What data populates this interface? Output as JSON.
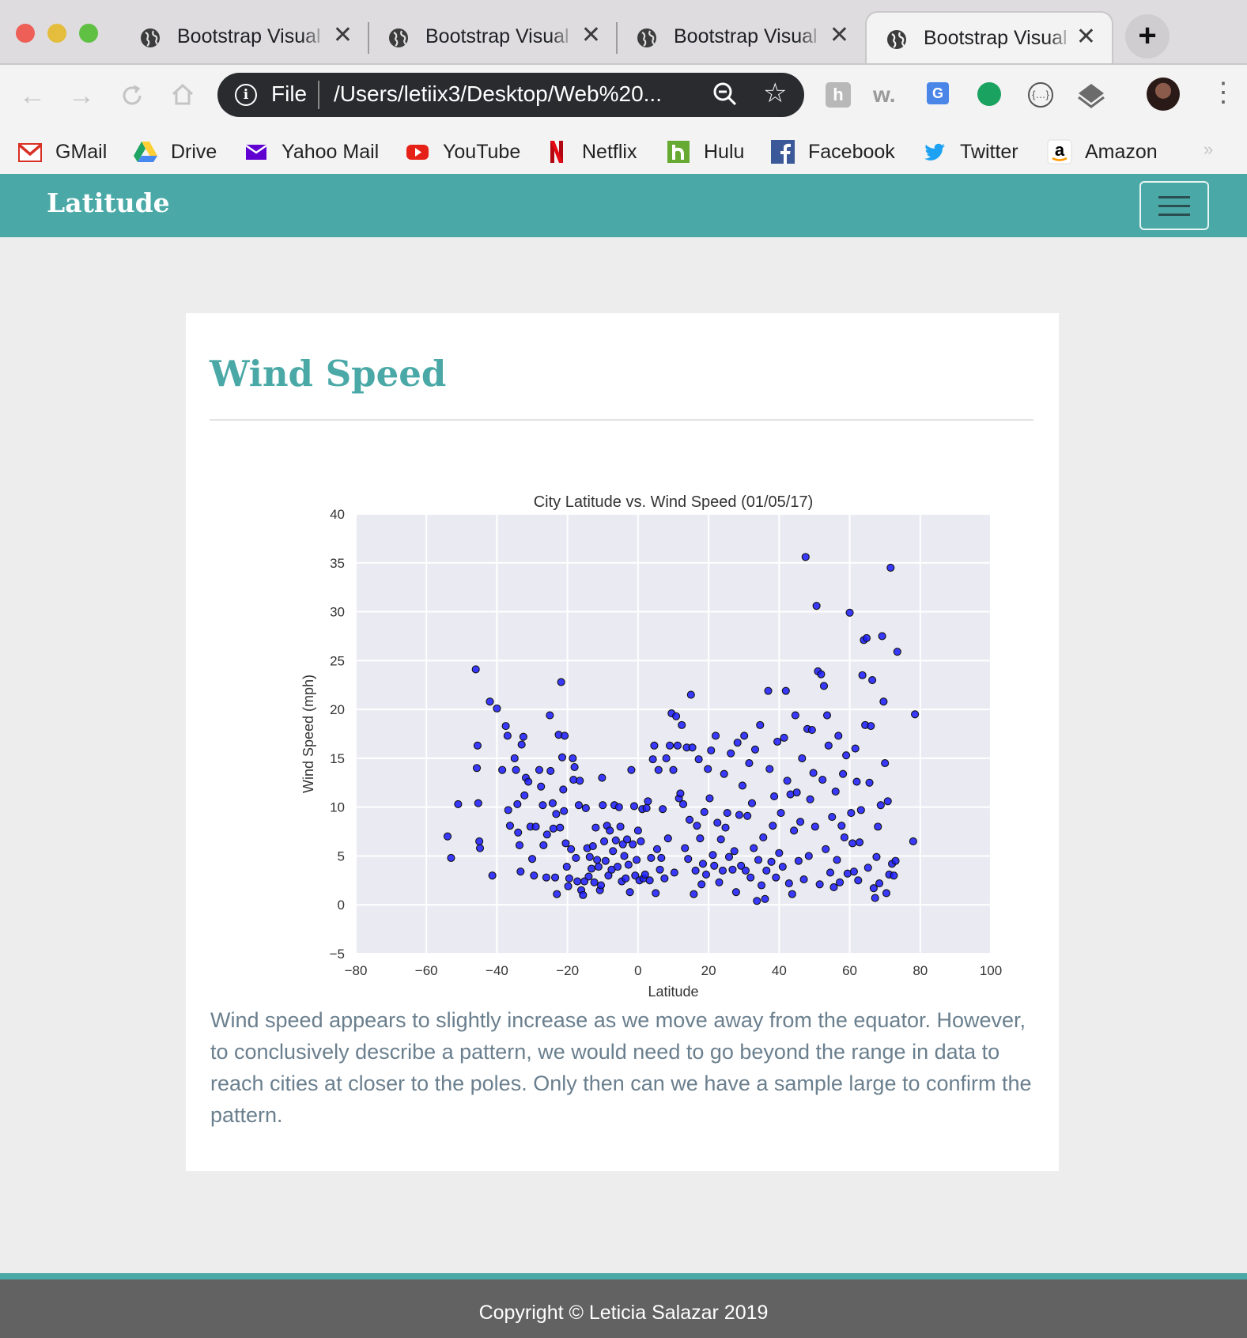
{
  "browser": {
    "tabs": [
      {
        "title": "Bootstrap Visual",
        "active": false
      },
      {
        "title": "Bootstrap Visual",
        "active": false
      },
      {
        "title": "Bootstrap Visual",
        "active": false
      },
      {
        "title": "Bootstrap Visual",
        "active": true
      }
    ],
    "new_tab_icon": "plus-icon",
    "omnibox": {
      "scheme_label": "File",
      "url": "/Users/letiix3/Desktop/Web%20..."
    },
    "bookmarks": [
      {
        "label": "GMail",
        "icon": "gmail-icon",
        "color": "#d93025"
      },
      {
        "label": "Drive",
        "icon": "drive-icon",
        "color": "#1fa463"
      },
      {
        "label": "Yahoo Mail",
        "icon": "yahoo-mail-icon",
        "color": "#6001d2"
      },
      {
        "label": "YouTube",
        "icon": "youtube-icon",
        "color": "#e62117"
      },
      {
        "label": "Netflix",
        "icon": "netflix-icon",
        "color": "#e50914"
      },
      {
        "label": "Hulu",
        "icon": "hulu-icon",
        "color": "#66aa33"
      },
      {
        "label": "Facebook",
        "icon": "facebook-icon",
        "color": "#3b5998"
      },
      {
        "label": "Twitter",
        "icon": "twitter-icon",
        "color": "#1da1f2"
      },
      {
        "label": "Amazon",
        "icon": "amazon-icon",
        "color": "#000000"
      }
    ]
  },
  "navbar": {
    "brand": "Latitude",
    "accent": "#4aa9a7"
  },
  "page": {
    "heading": "Wind Speed",
    "description": "Wind speed appears to slightly increase as we move away from the equator. However, to conclusively describe a pattern, we would need to go beyond the range in data to reach cities at closer to the poles. Only then can we have a sample large to confirm the pattern."
  },
  "footer": {
    "copyright": "Copyright © Leticia Salazar 2019"
  },
  "chart_data": {
    "type": "scatter",
    "title": "City Latitude vs. Wind Speed (01/05/17)",
    "xlabel": "Latitude",
    "ylabel": "Wind Speed (mph)",
    "xlim": [
      -80,
      100
    ],
    "ylim": [
      -5,
      40
    ],
    "xticks": [
      -80,
      -60,
      -40,
      -20,
      0,
      20,
      40,
      60,
      80,
      100
    ],
    "yticks": [
      -5,
      0,
      5,
      10,
      15,
      20,
      25,
      30,
      35,
      40
    ],
    "grid": true,
    "marker_color": "#1a1aff",
    "points": [
      [
        -54,
        7
      ],
      [
        -53,
        4.8
      ],
      [
        -51,
        10.3
      ],
      [
        -46,
        24.1
      ],
      [
        -45.5,
        16.3
      ],
      [
        -45.7,
        14
      ],
      [
        -45.3,
        10.4
      ],
      [
        -45,
        6.5
      ],
      [
        -44.8,
        5.8
      ],
      [
        -42,
        20.8
      ],
      [
        -41.3,
        3
      ],
      [
        -40,
        20.1
      ],
      [
        -38.5,
        13.8
      ],
      [
        -37.5,
        18.3
      ],
      [
        -37,
        17.3
      ],
      [
        -36.8,
        9.7
      ],
      [
        -36.3,
        8.1
      ],
      [
        -35,
        15
      ],
      [
        -34.6,
        13.8
      ],
      [
        -34.2,
        10.3
      ],
      [
        -34,
        7.4
      ],
      [
        -33.6,
        6.1
      ],
      [
        -33.3,
        3.4
      ],
      [
        -33,
        16.4
      ],
      [
        -32.5,
        17.2
      ],
      [
        -32.2,
        11.2
      ],
      [
        -31.8,
        13
      ],
      [
        -31.1,
        12.6
      ],
      [
        -30.5,
        8
      ],
      [
        -30,
        4.7
      ],
      [
        -29.5,
        3
      ],
      [
        -29,
        8
      ],
      [
        -28,
        13.8
      ],
      [
        -27.5,
        12.1
      ],
      [
        -27,
        10.2
      ],
      [
        -26.8,
        6.1
      ],
      [
        -26,
        2.8
      ],
      [
        -25.8,
        7.2
      ],
      [
        -25,
        19.4
      ],
      [
        -24.8,
        13.7
      ],
      [
        -24.2,
        10.4
      ],
      [
        -24,
        7.8
      ],
      [
        -23.5,
        2.8
      ],
      [
        -23.2,
        9.3
      ],
      [
        -23,
        1.1
      ],
      [
        -22.5,
        17.4
      ],
      [
        -22.1,
        7.9
      ],
      [
        -21.8,
        22.8
      ],
      [
        -21.5,
        15.1
      ],
      [
        -21.2,
        11.8
      ],
      [
        -21,
        9.6
      ],
      [
        -20.8,
        17.3
      ],
      [
        -20.5,
        6.3
      ],
      [
        -20.2,
        3.9
      ],
      [
        -19.8,
        1.9
      ],
      [
        -19.5,
        2.7
      ],
      [
        -19,
        5.7
      ],
      [
        -18.5,
        15
      ],
      [
        -18.3,
        12.8
      ],
      [
        -18,
        14.1
      ],
      [
        -17.6,
        4.8
      ],
      [
        -17.2,
        2.4
      ],
      [
        -16.8,
        10.2
      ],
      [
        -16.5,
        12.7
      ],
      [
        -16.1,
        1.5
      ],
      [
        -15.6,
        1
      ],
      [
        -15.2,
        2.4
      ],
      [
        -14.8,
        9.9
      ],
      [
        -14.4,
        5.8
      ],
      [
        -14,
        2.9
      ],
      [
        -13.7,
        4.9
      ],
      [
        -13.2,
        3.7
      ],
      [
        -12.8,
        6
      ],
      [
        -12.4,
        2.3
      ],
      [
        -12,
        7.9
      ],
      [
        -11.6,
        4.6
      ],
      [
        -11.2,
        3.9
      ],
      [
        -10.8,
        1.5
      ],
      [
        -10.5,
        2
      ],
      [
        -10.2,
        13
      ],
      [
        -10,
        10.2
      ],
      [
        -9.6,
        6.5
      ],
      [
        -9.2,
        4.5
      ],
      [
        -8.8,
        8.1
      ],
      [
        -8.4,
        3
      ],
      [
        -8,
        7.6
      ],
      [
        -7.5,
        3.6
      ],
      [
        -7.1,
        5.5
      ],
      [
        -6.7,
        10.2
      ],
      [
        -6.3,
        6.6
      ],
      [
        -5.8,
        3.9
      ],
      [
        -5.4,
        10
      ],
      [
        -5,
        8
      ],
      [
        -4.6,
        2.4
      ],
      [
        -4.3,
        6.2
      ],
      [
        -3.9,
        5
      ],
      [
        -3.5,
        2.7
      ],
      [
        -3.1,
        6.7
      ],
      [
        -2.7,
        4.1
      ],
      [
        -2.3,
        1.3
      ],
      [
        -1.9,
        13.8
      ],
      [
        -1.5,
        6.2
      ],
      [
        -1.1,
        10.1
      ],
      [
        -0.8,
        3
      ],
      [
        -0.4,
        4.6
      ],
      [
        0,
        7.6
      ],
      [
        0.4,
        2.5
      ],
      [
        0.8,
        6.5
      ],
      [
        1.2,
        9.8
      ],
      [
        1.5,
        2.7
      ],
      [
        2,
        3.1
      ],
      [
        2.4,
        9.9
      ],
      [
        2.8,
        10.6
      ],
      [
        3.3,
        2.5
      ],
      [
        3.7,
        4.8
      ],
      [
        4.2,
        14.9
      ],
      [
        4.6,
        16.3
      ],
      [
        5,
        1.2
      ],
      [
        5.4,
        5.7
      ],
      [
        5.8,
        13.8
      ],
      [
        6.2,
        3.6
      ],
      [
        6.6,
        4.8
      ],
      [
        7,
        9.8
      ],
      [
        7.5,
        2.7
      ],
      [
        8,
        15
      ],
      [
        8.5,
        6.8
      ],
      [
        9,
        16.3
      ],
      [
        9.5,
        19.6
      ],
      [
        10,
        13.8
      ],
      [
        10.3,
        3.3
      ],
      [
        10.8,
        19.3
      ],
      [
        11.2,
        16.3
      ],
      [
        11.6,
        10.9
      ],
      [
        12,
        11.4
      ],
      [
        12.4,
        18.4
      ],
      [
        12.8,
        10.3
      ],
      [
        13.3,
        5.8
      ],
      [
        13.8,
        16.1
      ],
      [
        14.2,
        4.7
      ],
      [
        14.6,
        8.7
      ],
      [
        15,
        21.5
      ],
      [
        15.4,
        16.1
      ],
      [
        15.8,
        1.1
      ],
      [
        16.3,
        3.5
      ],
      [
        16.7,
        8.1
      ],
      [
        17.2,
        14.9
      ],
      [
        17.6,
        6.8
      ],
      [
        18,
        2.1
      ],
      [
        18.4,
        4.2
      ],
      [
        18.8,
        9.5
      ],
      [
        19.3,
        3.1
      ],
      [
        19.8,
        13.9
      ],
      [
        20.3,
        10.9
      ],
      [
        20.7,
        15.8
      ],
      [
        21.2,
        5.1
      ],
      [
        21.6,
        4
      ],
      [
        22,
        17.3
      ],
      [
        22.5,
        8.4
      ],
      [
        23,
        2.3
      ],
      [
        23.5,
        6.7
      ],
      [
        24,
        3.5
      ],
      [
        24.4,
        13.4
      ],
      [
        24.8,
        7.9
      ],
      [
        25.3,
        9.4
      ],
      [
        25.8,
        4.9
      ],
      [
        26.3,
        15.5
      ],
      [
        26.8,
        3.6
      ],
      [
        27.3,
        5.5
      ],
      [
        27.8,
        1.3
      ],
      [
        28.2,
        16.6
      ],
      [
        28.7,
        9.2
      ],
      [
        29.2,
        4
      ],
      [
        29.6,
        12.2
      ],
      [
        30.1,
        17.3
      ],
      [
        30.5,
        3.5
      ],
      [
        31,
        9.1
      ],
      [
        31.5,
        14.5
      ],
      [
        31.9,
        2.8
      ],
      [
        32.3,
        10.4
      ],
      [
        32.8,
        5.8
      ],
      [
        33.2,
        15.9
      ],
      [
        33.7,
        0.4
      ],
      [
        34.1,
        4.6
      ],
      [
        34.6,
        18.4
      ],
      [
        35,
        2
      ],
      [
        35.5,
        6.9
      ],
      [
        36,
        0.6
      ],
      [
        36.4,
        3.5
      ],
      [
        36.9,
        21.9
      ],
      [
        37.3,
        13.9
      ],
      [
        37.8,
        4.4
      ],
      [
        38.2,
        8.1
      ],
      [
        38.6,
        11.1
      ],
      [
        39.1,
        2.8
      ],
      [
        39.5,
        16.7
      ],
      [
        40,
        5.3
      ],
      [
        40.5,
        9.4
      ],
      [
        41,
        3.9
      ],
      [
        41.4,
        17.1
      ],
      [
        41.9,
        21.9
      ],
      [
        42.3,
        12.7
      ],
      [
        42.8,
        2.2
      ],
      [
        43.2,
        11.3
      ],
      [
        43.7,
        1.1
      ],
      [
        44.2,
        7.6
      ],
      [
        44.6,
        19.4
      ],
      [
        45,
        11.5
      ],
      [
        45.5,
        4.5
      ],
      [
        46,
        8.5
      ],
      [
        46.5,
        15
      ],
      [
        47,
        2.6
      ],
      [
        47.5,
        35.6
      ],
      [
        48,
        18
      ],
      [
        48.4,
        5
      ],
      [
        48.8,
        10.8
      ],
      [
        49.3,
        17.9
      ],
      [
        49.7,
        13.5
      ],
      [
        50.2,
        8
      ],
      [
        50.6,
        30.6
      ],
      [
        51,
        23.9
      ],
      [
        51.5,
        2.1
      ],
      [
        51.9,
        23.6
      ],
      [
        52.3,
        12.8
      ],
      [
        52.7,
        22.4
      ],
      [
        53.2,
        5.7
      ],
      [
        53.6,
        19.4
      ],
      [
        54,
        16.3
      ],
      [
        54.5,
        3.3
      ],
      [
        55,
        9
      ],
      [
        55.5,
        1.8
      ],
      [
        56,
        11.6
      ],
      [
        56.4,
        4.6
      ],
      [
        56.8,
        17.3
      ],
      [
        57.2,
        2.3
      ],
      [
        57.7,
        8.1
      ],
      [
        58.1,
        13.4
      ],
      [
        58.5,
        6.9
      ],
      [
        59,
        15.3
      ],
      [
        59.4,
        3.2
      ],
      [
        60,
        29.9
      ],
      [
        60.4,
        9.4
      ],
      [
        60.8,
        6.3
      ],
      [
        61.2,
        3.4
      ],
      [
        61.6,
        16
      ],
      [
        62,
        12.6
      ],
      [
        62.4,
        2.5
      ],
      [
        62.8,
        6.4
      ],
      [
        63.2,
        9.7
      ],
      [
        63.6,
        23.5
      ],
      [
        64,
        27.1
      ],
      [
        64.4,
        18.4
      ],
      [
        64.8,
        27.3
      ],
      [
        65.2,
        3.8
      ],
      [
        65.6,
        12.5
      ],
      [
        66,
        18.3
      ],
      [
        66.4,
        23
      ],
      [
        66.8,
        1.7
      ],
      [
        67.2,
        0.7
      ],
      [
        67.6,
        4.9
      ],
      [
        68,
        8
      ],
      [
        68.4,
        2.2
      ],
      [
        68.8,
        10.2
      ],
      [
        69.2,
        27.5
      ],
      [
        69.6,
        20.8
      ],
      [
        70,
        14.5
      ],
      [
        70.4,
        1.2
      ],
      [
        70.8,
        10.6
      ],
      [
        71.2,
        3.1
      ],
      [
        71.6,
        34.5
      ],
      [
        72,
        4.2
      ],
      [
        72.5,
        3
      ],
      [
        73,
        4.5
      ],
      [
        73.5,
        25.9
      ],
      [
        78,
        6.5
      ],
      [
        78.5,
        19.5
      ]
    ]
  }
}
